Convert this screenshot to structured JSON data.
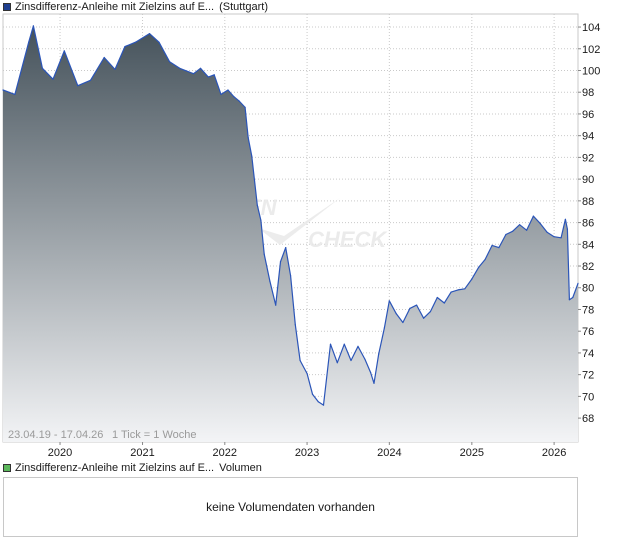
{
  "legend_main": {
    "label": "Zinsdifferenz-Anleihe mit Zielzins auf E...",
    "exchange": "(Stuttgart)",
    "color": "#1f3f8f"
  },
  "legend_volume": {
    "label": "Zinsdifferenz-Anleihe mit Zielzins auf E...",
    "suffix": "Volumen",
    "color": "#5cb85c"
  },
  "footer": {
    "range": "23.04.19 - 17.04.26",
    "tick": "1 Tick = 1 Woche"
  },
  "volume_message": "keine Volumendaten vorhanden",
  "watermark": {
    "line1": "EN",
    "line2": "CHECK"
  },
  "colors": {
    "line": "#2b55b8",
    "fill_top": "#45525b",
    "fill_bottom": "#f3f4f6",
    "grid": "#c9c9c9"
  },
  "chart_data": {
    "type": "area",
    "title": "",
    "xlabel": "",
    "ylabel": "",
    "x_start": "2019-04-23",
    "x_end": "2026-04-17",
    "ylim": [
      65.8,
      105.2
    ],
    "yticks": [
      68,
      70,
      72,
      74,
      76,
      78,
      80,
      82,
      84,
      86,
      88,
      90,
      92,
      94,
      96,
      98,
      100,
      102,
      104
    ],
    "xticks": [
      {
        "label": "2020",
        "date": "2020-01-01"
      },
      {
        "label": "2021",
        "date": "2021-01-01"
      },
      {
        "label": "2022",
        "date": "2022-01-01"
      },
      {
        "label": "2023",
        "date": "2023-01-01"
      },
      {
        "label": "2024",
        "date": "2024-01-01"
      },
      {
        "label": "2025",
        "date": "2025-01-01"
      },
      {
        "label": "2026",
        "date": "2026-01-01"
      }
    ],
    "grid": true,
    "series": [
      {
        "x": [
          "2019-04-23",
          "2019-06-15",
          "2019-08-15",
          "2019-09-05",
          "2019-10-15",
          "2019-12-01",
          "2020-01-20",
          "2020-03-20",
          "2020-05-15",
          "2020-07-15",
          "2020-09-01",
          "2020-10-15",
          "2020-12-01",
          "2021-02-01",
          "2021-03-15",
          "2021-05-01",
          "2021-06-15",
          "2021-08-15",
          "2021-09-15",
          "2021-10-20",
          "2021-11-15",
          "2021-12-15",
          "2022-01-15",
          "2022-02-10",
          "2022-03-05",
          "2022-04-01",
          "2022-04-15",
          "2022-05-01",
          "2022-05-25",
          "2022-06-10",
          "2022-06-25",
          "2022-07-20",
          "2022-08-15",
          "2022-09-05",
          "2022-09-28",
          "2022-10-20",
          "2022-11-10",
          "2022-12-01",
          "2023-01-01",
          "2023-01-25",
          "2023-02-20",
          "2023-03-15",
          "2023-04-15",
          "2023-05-15",
          "2023-06-15",
          "2023-07-15",
          "2023-08-15",
          "2023-09-15",
          "2023-10-10",
          "2023-10-25",
          "2023-11-15",
          "2023-12-10",
          "2024-01-01",
          "2024-02-01",
          "2024-03-01",
          "2024-04-01",
          "2024-05-01",
          "2024-06-01",
          "2024-07-01",
          "2024-08-01",
          "2024-09-01",
          "2024-10-01",
          "2024-11-01",
          "2024-12-01",
          "2025-01-01",
          "2025-02-01",
          "2025-03-01",
          "2025-04-01",
          "2025-05-01",
          "2025-06-01",
          "2025-07-01",
          "2025-08-01",
          "2025-09-01",
          "2025-10-01",
          "2025-11-01",
          "2025-12-01",
          "2026-01-01",
          "2026-02-01",
          "2026-02-20",
          "2026-03-01",
          "2026-03-10",
          "2026-03-25",
          "2026-04-17"
        ],
        "y": [
          98.2,
          97.8,
          102.6,
          104.1,
          100.2,
          99.2,
          101.8,
          98.6,
          99.1,
          101.2,
          100.1,
          102.2,
          102.6,
          103.4,
          102.6,
          100.8,
          100.2,
          99.7,
          100.2,
          99.4,
          99.6,
          97.8,
          98.2,
          97.6,
          97.2,
          96.6,
          93.8,
          92.1,
          87.6,
          86.2,
          83.1,
          80.6,
          78.4,
          82.4,
          83.7,
          81.1,
          76.6,
          73.3,
          72.1,
          70.2,
          69.5,
          69.2,
          74.8,
          73.1,
          74.8,
          73.3,
          74.6,
          73.4,
          72.2,
          71.2,
          73.9,
          76.3,
          78.8,
          77.6,
          76.8,
          78.1,
          78.4,
          77.2,
          77.8,
          79.1,
          78.6,
          79.6,
          79.8,
          79.9,
          80.8,
          81.9,
          82.6,
          83.9,
          83.7,
          84.9,
          85.2,
          85.8,
          85.3,
          86.6,
          85.9,
          85.1,
          84.7,
          84.6,
          86.3,
          85.4,
          78.9,
          79.1,
          80.4
        ]
      }
    ]
  }
}
